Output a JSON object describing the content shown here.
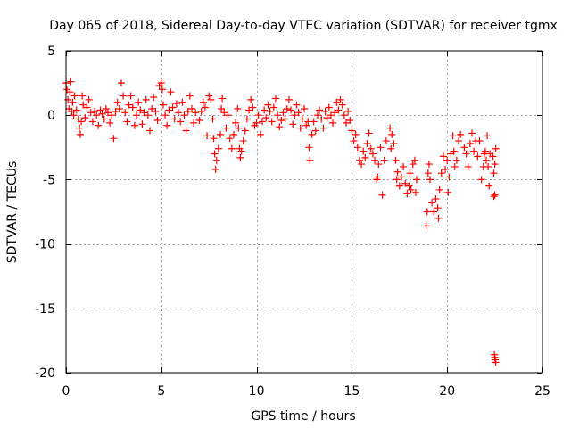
{
  "chart_data": {
    "type": "scatter",
    "title": "Day 065 of 2018, Sidereal Day-to-day VTEC variation (SDTVAR) for receiver tgmx",
    "xlabel": "GPS time / hours",
    "ylabel": "SDTVAR / TECUs",
    "xlim": [
      0,
      25
    ],
    "ylim": [
      -20,
      5
    ],
    "x_ticks": [
      0,
      5,
      10,
      15,
      20,
      25
    ],
    "y_ticks": [
      5,
      0,
      -5,
      -10,
      -15,
      -20
    ],
    "grid": true,
    "marker": "plus",
    "series": [
      {
        "name": "SDTVAR",
        "color": "#ff0000",
        "points": [
          [
            0.0,
            2.5
          ],
          [
            0.05,
            2.0
          ],
          [
            0.1,
            1.2
          ],
          [
            0.15,
            0.5
          ],
          [
            0.2,
            1.8
          ],
          [
            0.25,
            2.6
          ],
          [
            0.3,
            0.3
          ],
          [
            0.35,
            1.0
          ],
          [
            0.4,
            0.0
          ],
          [
            0.45,
            1.5
          ],
          [
            0.55,
            0.4
          ],
          [
            0.65,
            -0.3
          ],
          [
            0.7,
            -1.0
          ],
          [
            0.75,
            -1.5
          ],
          [
            0.8,
            -0.5
          ],
          [
            0.85,
            1.5
          ],
          [
            0.9,
            0.8
          ],
          [
            1.0,
            -0.2
          ],
          [
            1.1,
            0.6
          ],
          [
            1.2,
            1.2
          ],
          [
            1.3,
            0.2
          ],
          [
            1.4,
            -0.5
          ],
          [
            1.5,
            0.3
          ],
          [
            1.6,
            0.0
          ],
          [
            1.7,
            -0.8
          ],
          [
            1.8,
            0.4
          ],
          [
            1.9,
            0.1
          ],
          [
            2.0,
            -0.3
          ],
          [
            2.1,
            0.5
          ],
          [
            2.2,
            0.2
          ],
          [
            2.3,
            -0.6
          ],
          [
            2.4,
            0.0
          ],
          [
            2.5,
            -1.8
          ],
          [
            2.6,
            0.3
          ],
          [
            2.7,
            1.0
          ],
          [
            2.8,
            0.5
          ],
          [
            2.9,
            2.5
          ],
          [
            3.0,
            1.5
          ],
          [
            3.1,
            0.2
          ],
          [
            3.2,
            -0.5
          ],
          [
            3.3,
            0.8
          ],
          [
            3.4,
            1.5
          ],
          [
            3.5,
            0.6
          ],
          [
            3.6,
            -0.8
          ],
          [
            3.7,
            0.0
          ],
          [
            3.8,
            1.0
          ],
          [
            3.9,
            0.4
          ],
          [
            4.0,
            -0.7
          ],
          [
            4.1,
            0.2
          ],
          [
            4.2,
            1.2
          ],
          [
            4.3,
            0.0
          ],
          [
            4.4,
            -1.2
          ],
          [
            4.5,
            0.5
          ],
          [
            4.6,
            1.4
          ],
          [
            4.7,
            0.3
          ],
          [
            4.8,
            -0.4
          ],
          [
            4.9,
            2.3
          ],
          [
            5.0,
            2.5
          ],
          [
            5.05,
            2.0
          ],
          [
            5.1,
            0.8
          ],
          [
            5.2,
            0.0
          ],
          [
            5.3,
            -0.8
          ],
          [
            5.4,
            0.4
          ],
          [
            5.5,
            1.8
          ],
          [
            5.6,
            0.6
          ],
          [
            5.7,
            -0.3
          ],
          [
            5.8,
            0.9
          ],
          [
            5.9,
            0.2
          ],
          [
            6.0,
            -0.5
          ],
          [
            6.1,
            1.0
          ],
          [
            6.2,
            0.0
          ],
          [
            6.3,
            -1.2
          ],
          [
            6.4,
            0.3
          ],
          [
            6.5,
            1.5
          ],
          [
            6.6,
            0.5
          ],
          [
            6.7,
            -0.6
          ],
          [
            6.8,
            0.2
          ],
          [
            7.0,
            -0.4
          ],
          [
            7.1,
            0.3
          ],
          [
            7.2,
            1.0
          ],
          [
            7.3,
            0.6
          ],
          [
            7.4,
            -1.6
          ],
          [
            7.5,
            1.5
          ],
          [
            7.6,
            1.2
          ],
          [
            7.7,
            -0.3
          ],
          [
            7.75,
            -1.8
          ],
          [
            7.8,
            -3.0
          ],
          [
            7.85,
            -4.2
          ],
          [
            7.9,
            -3.5
          ],
          [
            8.0,
            -2.6
          ],
          [
            8.1,
            -1.5
          ],
          [
            8.15,
            0.5
          ],
          [
            8.2,
            1.3
          ],
          [
            8.3,
            0.2
          ],
          [
            8.4,
            -1.0
          ],
          [
            8.5,
            0.0
          ],
          [
            8.6,
            -1.8
          ],
          [
            8.7,
            -2.6
          ],
          [
            8.8,
            -1.5
          ],
          [
            8.9,
            -0.6
          ],
          [
            9.0,
            0.5
          ],
          [
            9.05,
            -1.0
          ],
          [
            9.1,
            -2.6
          ],
          [
            9.15,
            -3.3
          ],
          [
            9.2,
            -2.8
          ],
          [
            9.3,
            -2.0
          ],
          [
            9.4,
            -1.2
          ],
          [
            9.5,
            -0.3
          ],
          [
            9.6,
            0.4
          ],
          [
            9.7,
            1.2
          ],
          [
            9.8,
            0.6
          ],
          [
            9.9,
            -0.8
          ],
          [
            10.0,
            -0.6
          ],
          [
            10.1,
            0.0
          ],
          [
            10.2,
            -1.5
          ],
          [
            10.3,
            -0.5
          ],
          [
            10.4,
            0.4
          ],
          [
            10.5,
            -0.2
          ],
          [
            10.6,
            0.8
          ],
          [
            10.7,
            0.3
          ],
          [
            10.8,
            -0.5
          ],
          [
            10.9,
            0.6
          ],
          [
            11.0,
            1.3
          ],
          [
            11.1,
            0.0
          ],
          [
            11.2,
            -0.9
          ],
          [
            11.3,
            -0.4
          ],
          [
            11.4,
            0.2
          ],
          [
            11.5,
            -0.3
          ],
          [
            11.6,
            0.5
          ],
          [
            11.7,
            1.2
          ],
          [
            11.8,
            0.4
          ],
          [
            11.9,
            -0.7
          ],
          [
            12.0,
            0.0
          ],
          [
            12.1,
            0.8
          ],
          [
            12.2,
            0.2
          ],
          [
            12.3,
            -1.0
          ],
          [
            12.4,
            -0.3
          ],
          [
            12.5,
            0.5
          ],
          [
            12.6,
            -0.8
          ],
          [
            12.7,
            -0.5
          ],
          [
            12.75,
            -2.5
          ],
          [
            12.8,
            -3.5
          ],
          [
            12.9,
            -1.5
          ],
          [
            13.0,
            -0.5
          ],
          [
            13.1,
            -1.2
          ],
          [
            13.2,
            0.0
          ],
          [
            13.3,
            0.4
          ],
          [
            13.4,
            -0.3
          ],
          [
            13.5,
            -1.0
          ],
          [
            13.6,
            0.3
          ],
          [
            13.7,
            -0.2
          ],
          [
            13.8,
            0.6
          ],
          [
            13.9,
            0.0
          ],
          [
            14.0,
            -0.6
          ],
          [
            14.1,
            0.2
          ],
          [
            14.2,
            1.0
          ],
          [
            14.3,
            0.4
          ],
          [
            14.4,
            1.2
          ],
          [
            14.5,
            0.8
          ],
          [
            14.6,
            0.0
          ],
          [
            14.7,
            -0.6
          ],
          [
            14.8,
            0.3
          ],
          [
            14.9,
            -0.4
          ],
          [
            15.0,
            -1.2
          ],
          [
            15.1,
            -2.0
          ],
          [
            15.2,
            -1.5
          ],
          [
            15.3,
            -2.5
          ],
          [
            15.4,
            -3.5
          ],
          [
            15.5,
            -3.8
          ],
          [
            15.6,
            -2.8
          ],
          [
            15.7,
            -3.3
          ],
          [
            15.8,
            -2.2
          ],
          [
            15.9,
            -1.4
          ],
          [
            16.0,
            -2.6
          ],
          [
            16.1,
            -3.0
          ],
          [
            16.2,
            -3.5
          ],
          [
            16.3,
            -5.0
          ],
          [
            16.35,
            -4.8
          ],
          [
            16.4,
            -3.8
          ],
          [
            16.5,
            -2.5
          ],
          [
            16.6,
            -6.2
          ],
          [
            16.7,
            -3.5
          ],
          [
            16.8,
            -2.0
          ],
          [
            17.0,
            -1.0
          ],
          [
            17.05,
            -2.6
          ],
          [
            17.1,
            -1.5
          ],
          [
            17.2,
            -2.2
          ],
          [
            17.3,
            -3.5
          ],
          [
            17.35,
            -5.0
          ],
          [
            17.4,
            -4.4
          ],
          [
            17.5,
            -5.5
          ],
          [
            17.6,
            -4.8
          ],
          [
            17.7,
            -4.0
          ],
          [
            17.8,
            -5.3
          ],
          [
            17.9,
            -6.1
          ],
          [
            18.0,
            -5.5
          ],
          [
            18.05,
            -4.5
          ],
          [
            18.1,
            -5.8
          ],
          [
            18.2,
            -3.8
          ],
          [
            18.3,
            -3.5
          ],
          [
            18.35,
            -6.0
          ],
          [
            18.4,
            -5.0
          ],
          [
            18.9,
            -8.6
          ],
          [
            18.95,
            -7.5
          ],
          [
            19.0,
            -4.5
          ],
          [
            19.05,
            -3.8
          ],
          [
            19.1,
            -5.0
          ],
          [
            19.2,
            -6.8
          ],
          [
            19.3,
            -7.5
          ],
          [
            19.4,
            -6.5
          ],
          [
            19.5,
            -7.2
          ],
          [
            19.55,
            -8.0
          ],
          [
            19.6,
            -5.8
          ],
          [
            19.7,
            -4.5
          ],
          [
            19.8,
            -3.2
          ],
          [
            19.9,
            -4.2
          ],
          [
            20.0,
            -3.5
          ],
          [
            20.05,
            -6.0
          ],
          [
            20.1,
            -4.8
          ],
          [
            20.2,
            -3.0
          ],
          [
            20.3,
            -1.6
          ],
          [
            20.35,
            -2.8
          ],
          [
            20.4,
            -4.0
          ],
          [
            20.5,
            -3.5
          ],
          [
            20.6,
            -2.0
          ],
          [
            20.7,
            -1.5
          ],
          [
            20.9,
            -2.5
          ],
          [
            21.0,
            -3.0
          ],
          [
            21.1,
            -4.0
          ],
          [
            21.2,
            -2.2
          ],
          [
            21.3,
            -1.4
          ],
          [
            21.4,
            -2.8
          ],
          [
            21.5,
            -2.0
          ],
          [
            21.6,
            -3.2
          ],
          [
            21.7,
            -2.0
          ],
          [
            21.8,
            -5.0
          ],
          [
            21.9,
            -4.0
          ],
          [
            21.95,
            -3.0
          ],
          [
            22.0,
            -2.8
          ],
          [
            22.05,
            -3.5
          ],
          [
            22.1,
            -1.6
          ],
          [
            22.15,
            -4.0
          ],
          [
            22.2,
            -5.5
          ],
          [
            22.25,
            -3.0
          ],
          [
            22.4,
            -3.2
          ],
          [
            22.45,
            -4.5
          ],
          [
            22.5,
            -3.8
          ],
          [
            22.55,
            -2.6
          ],
          [
            22.5,
            -6.2
          ],
          [
            22.45,
            -6.3
          ],
          [
            22.5,
            -18.8
          ],
          [
            22.52,
            -19.0
          ],
          [
            22.55,
            -19.2
          ],
          [
            22.48,
            -18.6
          ]
        ]
      }
    ]
  }
}
